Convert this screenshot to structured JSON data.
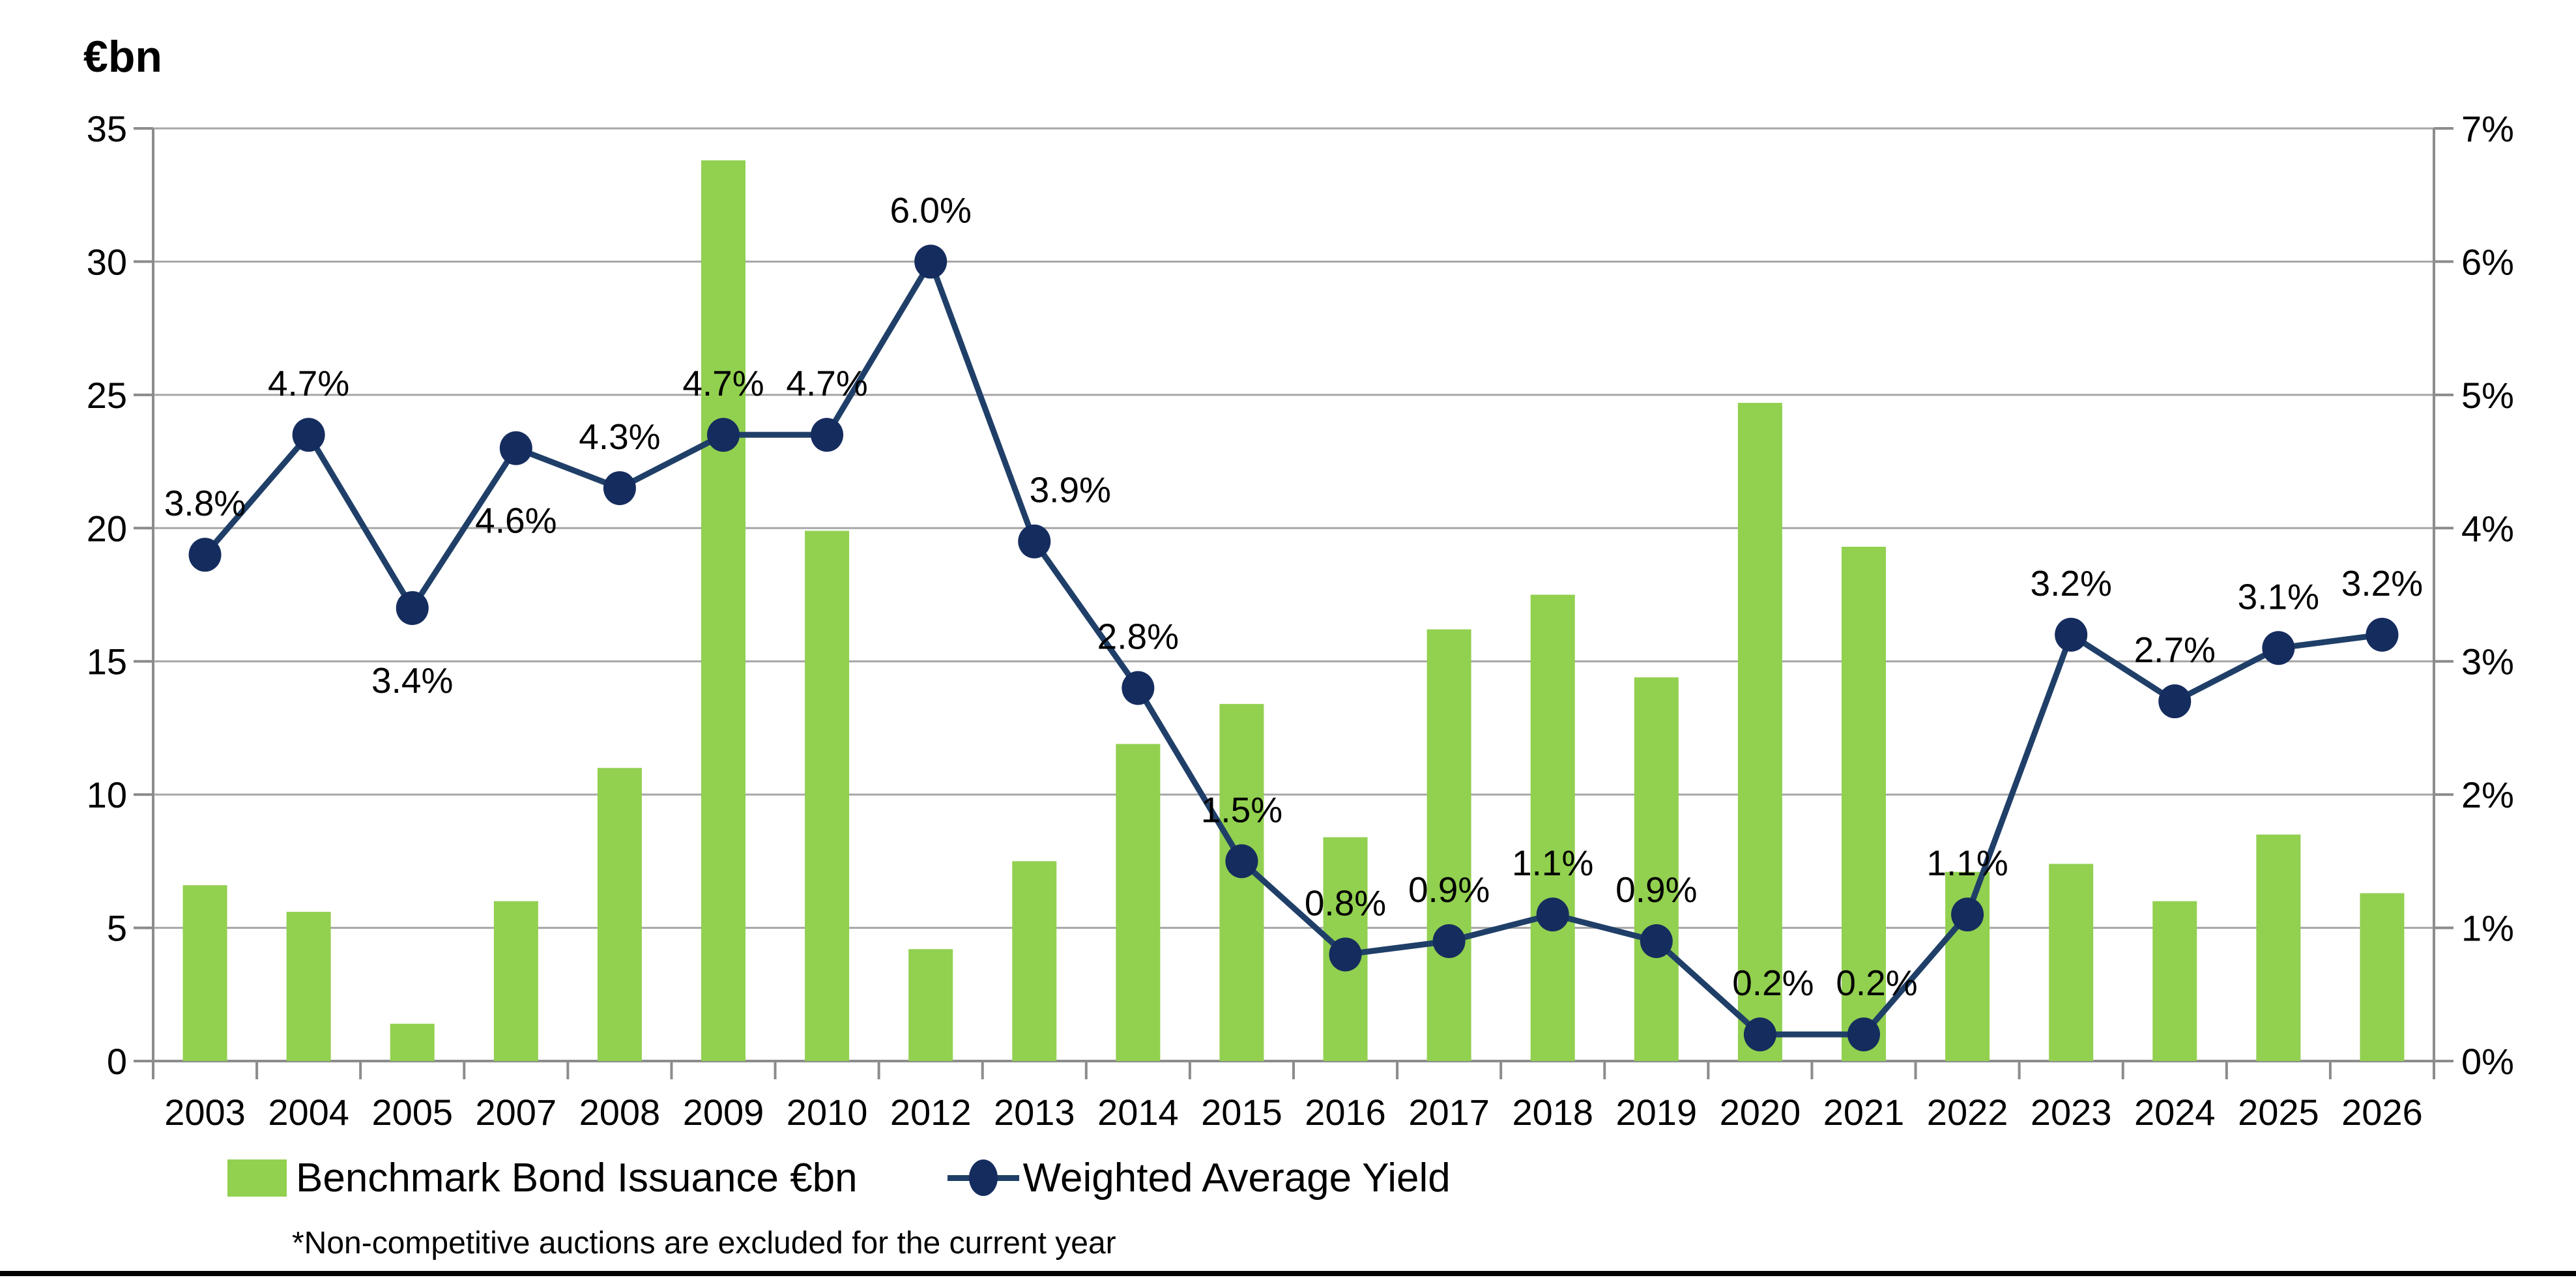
{
  "title": "€bn",
  "footnote": "*Non-competitive auctions are excluded for the current year",
  "legend": [
    {
      "label": "Benchmark Bond Issuance €bn",
      "marker": "green-square"
    },
    {
      "label": "Weighted Average Yield",
      "marker": "navy-line-dot"
    }
  ],
  "colors": {
    "bar": "#92D050",
    "line": "#1F3F68",
    "marker": "#152C5E",
    "gridline": "#A6A6A6",
    "axis": "#8C8C8C",
    "text": "#000000",
    "bottom_rule": "#000000"
  },
  "chart_data": {
    "type": "combo-bar-line",
    "title": "€bn",
    "categories": [
      "2003",
      "2004",
      "2005",
      "2007",
      "2008",
      "2009",
      "2010",
      "2012",
      "2013",
      "2014",
      "2015",
      "2016",
      "2017",
      "2018",
      "2019",
      "2020",
      "2021",
      "2022",
      "2023",
      "2024",
      "2025",
      "2026"
    ],
    "series": [
      {
        "name": "Benchmark Bond Issuance €bn",
        "type": "bar",
        "axis": "left",
        "unit": "€bn",
        "values": [
          6.6,
          5.6,
          1.4,
          6.0,
          11.0,
          33.8,
          19.9,
          4.2,
          7.5,
          11.9,
          13.4,
          8.4,
          16.2,
          17.5,
          14.4,
          24.7,
          19.3,
          7.1,
          7.4,
          6.0,
          8.5,
          6.3
        ]
      },
      {
        "name": "Weighted Average Yield",
        "type": "line",
        "axis": "right",
        "unit": "%",
        "values": [
          3.8,
          4.7,
          3.4,
          4.6,
          4.3,
          4.7,
          4.7,
          6.0,
          3.9,
          2.8,
          1.5,
          0.8,
          0.9,
          1.1,
          0.9,
          0.2,
          0.2,
          1.1,
          3.2,
          2.7,
          3.1,
          3.2
        ],
        "data_labels": [
          "3.8%",
          "4.7%",
          "3.4%",
          "4.6%",
          "4.3%",
          "4.7%",
          "4.7%",
          "6.0%",
          "3.9%",
          "2.8%",
          "1.5%",
          "0.8%",
          "0.9%",
          "1.1%",
          "0.9%",
          "0.2%",
          "0.2%",
          "1.1%",
          "3.2%",
          "2.7%",
          "3.1%",
          "3.2%"
        ],
        "label_position": [
          "above",
          "above",
          "below",
          "below",
          "above",
          "above",
          "above",
          "above",
          "above",
          "above",
          "above",
          "above",
          "above",
          "above",
          "above",
          "above",
          "above",
          "above",
          "above",
          "above",
          "above",
          "above"
        ],
        "label_dx": [
          0,
          0,
          0,
          0,
          0,
          0,
          0,
          0,
          55,
          0,
          0,
          0,
          0,
          0,
          0,
          20,
          20,
          0,
          0,
          0,
          0,
          0
        ]
      }
    ],
    "left_axis": {
      "label": "€bn",
      "min": 0,
      "max": 35,
      "step": 5,
      "tick_labels": [
        "0",
        "5",
        "10",
        "15",
        "20",
        "25",
        "30",
        "35"
      ]
    },
    "right_axis": {
      "min": 0,
      "max": 7,
      "step": 1,
      "tick_labels": [
        "0%",
        "1%",
        "2%",
        "3%",
        "4%",
        "5%",
        "6%",
        "7%"
      ]
    },
    "grid": true,
    "legend_position": "bottom"
  }
}
